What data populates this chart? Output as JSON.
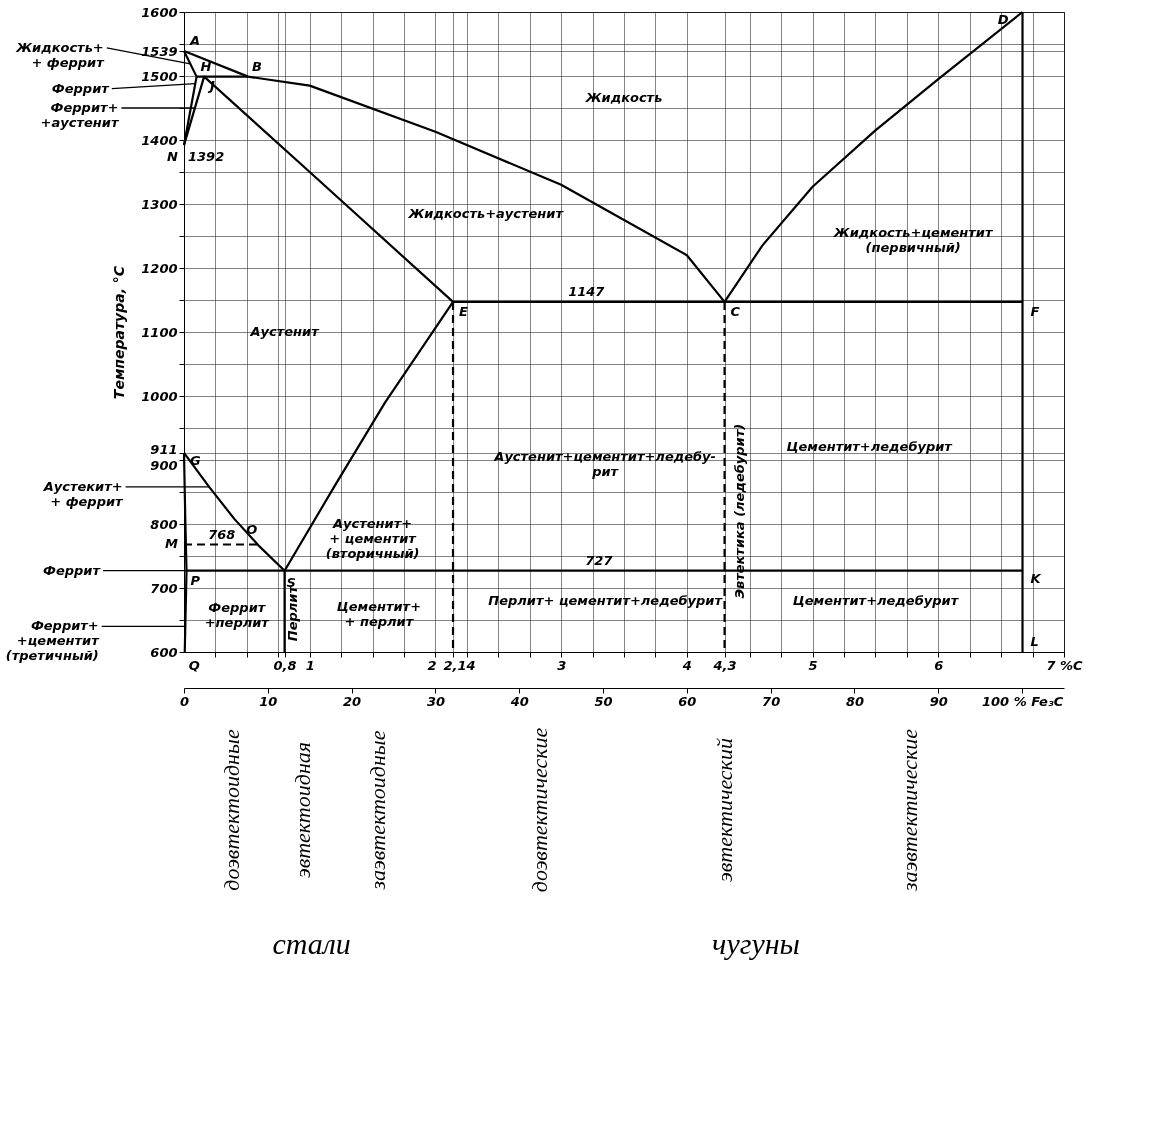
{
  "chart_data": {
    "type": "line",
    "ylabel": "Температура, °C",
    "xlim": [
      0,
      7
    ],
    "xticks": [
      {
        "value": 0.25,
        "label": null
      },
      {
        "value": 0.5,
        "label": null
      },
      {
        "value": 0.75,
        "label": null
      },
      {
        "value": 0.8,
        "label": "0,8"
      },
      1,
      {
        "value": 1.25,
        "label": null
      },
      {
        "value": 1.5,
        "label": null
      },
      {
        "value": 1.75,
        "label": null
      },
      2,
      {
        "value": 2.14,
        "label": "2,14"
      },
      {
        "value": 2.25,
        "label": null
      },
      {
        "value": 2.5,
        "label": null
      },
      {
        "value": 2.75,
        "label": null
      },
      3,
      {
        "value": 3.25,
        "label": null
      },
      {
        "value": 3.5,
        "label": null
      },
      {
        "value": 3.75,
        "label": null
      },
      4,
      {
        "value": 4.3,
        "label": "4,3"
      },
      {
        "value": 4.5,
        "label": null
      },
      {
        "value": 4.75,
        "label": null
      },
      5,
      {
        "value": 5.25,
        "label": null
      },
      {
        "value": 5.5,
        "label": null
      },
      {
        "value": 5.75,
        "label": null
      },
      6,
      {
        "value": 6.25,
        "label": null
      },
      {
        "value": 6.5,
        "label": null
      },
      {
        "value": 6.75,
        "label": null
      },
      {
        "value": 7,
        "label": "7 %C"
      }
    ],
    "x2lim": [
      0,
      105
    ],
    "x2ticks": [
      0,
      10,
      20,
      30,
      40,
      50,
      60,
      70,
      80,
      90,
      {
        "value": 100,
        "label": "100 % Fe₃C"
      }
    ],
    "ylim": [
      600,
      1600
    ],
    "yticks": [
      600,
      {
        "value": 650,
        "label": null
      },
      700,
      {
        "value": 750,
        "label": null
      },
      800,
      {
        "value": 850,
        "label": null
      },
      900,
      911,
      {
        "value": 950,
        "label": null
      },
      1000,
      {
        "value": 1050,
        "label": null
      },
      1100,
      {
        "value": 1150,
        "label": null
      },
      1200,
      {
        "value": 1250,
        "label": null
      },
      1300,
      {
        "value": 1350,
        "label": null
      },
      1400,
      {
        "value": 1450,
        "label": null
      },
      1500,
      1539,
      {
        "value": 1550,
        "label": null
      },
      1600
    ],
    "grid": true,
    "series": [
      {
        "color": "#000000",
        "x": [
          0,
          0.51,
          1,
          2,
          3,
          4,
          4.3,
          4.6,
          5,
          5.5,
          6,
          6.67
        ],
        "values": [
          1539,
          1499,
          1485,
          1413,
          1330,
          1220,
          1147,
          1235,
          1327,
          1415,
          1495,
          1600
        ]
      },
      {
        "color": "#000000",
        "x": [
          0,
          0.1,
          0
        ],
        "values": [
          1392,
          1499,
          1539
        ]
      },
      {
        "color": "#000000",
        "x": [
          0.1,
          0.51
        ],
        "values": [
          1499,
          1499
        ]
      },
      {
        "color": "#000000",
        "x": [
          0,
          0.16,
          1,
          2.14,
          6.67
        ],
        "values": [
          1392,
          1499,
          1350,
          1147,
          1147
        ]
      },
      {
        "color": "#000000",
        "x": [
          0,
          0.2,
          0.4,
          0.6,
          0.8,
          1.2,
          1.6,
          2.14
        ],
        "values": [
          911,
          858,
          808,
          765,
          727,
          860,
          990,
          1147
        ]
      },
      {
        "color": "#000000",
        "x": [
          0.006,
          0.02,
          0.01,
          0
        ],
        "values": [
          600,
          727,
          810,
          911
        ]
      },
      {
        "color": "#000000",
        "x": [
          0.02,
          6.67
        ],
        "values": [
          727,
          727
        ]
      },
      {
        "color": "#000000",
        "x": [
          0,
          0.6
        ],
        "values": [
          768,
          768
        ],
        "line_style": "dashed"
      },
      {
        "color": "#000000",
        "x": [
          2.14,
          2.14
        ],
        "values": [
          1147,
          600
        ],
        "line_style": "dashed"
      },
      {
        "color": "#000000",
        "x": [
          4.3,
          4.3
        ],
        "values": [
          1147,
          600
        ],
        "line_style": "dashed"
      },
      {
        "color": "#000000",
        "x": [
          6.67,
          6.67
        ],
        "values": [
          1600,
          600
        ]
      },
      {
        "color": "#000000",
        "x": [
          0.8,
          0.8
        ],
        "values": [
          727,
          600
        ]
      }
    ],
    "annotations": [
      {
        "text": "Жидкость+\n+ феррит",
        "x": 0.05,
        "y": 1519
      },
      {
        "text": "Феррит",
        "x": 0.09,
        "y": 1488
      },
      {
        "text": "Феррит+\n+аустенит",
        "x": 0.087,
        "y": 1450
      },
      {
        "text": "Аустекит+\n+ феррит",
        "x": 0.2,
        "y": 858
      },
      {
        "text": "Феррит",
        "x": 0.02,
        "y": 727
      },
      {
        "text": "Феррит+\n+цементит\n(третичный)",
        "x": 0.01,
        "y": 640
      },
      {
        "text": "1392",
        "x": 0,
        "y": 1392
      },
      {
        "text": "768",
        "x": 0.3,
        "y": 768
      },
      {
        "text": "A",
        "x": 0,
        "y": 1539
      },
      {
        "text": "B",
        "x": 0.51,
        "y": 1499
      },
      {
        "text": "H",
        "x": 0.1,
        "y": 1499
      },
      {
        "text": "J",
        "x": 0.16,
        "y": 1499
      },
      {
        "text": "N",
        "x": 0,
        "y": 1392
      },
      {
        "text": "G",
        "x": 0,
        "y": 911
      },
      {
        "text": "M",
        "x": 0,
        "y": 768
      },
      {
        "text": "O",
        "x": 0.6,
        "y": 768
      },
      {
        "text": "P",
        "x": 0.02,
        "y": 727
      },
      {
        "text": "S",
        "x": 0.8,
        "y": 727
      },
      {
        "text": "Q",
        "x": 0.006,
        "y": 600
      },
      {
        "text": "E",
        "x": 2.14,
        "y": 1147
      },
      {
        "text": "C",
        "x": 4.3,
        "y": 1147
      },
      {
        "text": "D",
        "x": 6.67,
        "y": 1600
      },
      {
        "text": "F",
        "x": 6.67,
        "y": 1147
      },
      {
        "text": "K",
        "x": 6.67,
        "y": 727
      },
      {
        "text": "L",
        "x": 6.67,
        "y": 600
      },
      {
        "text": "1147",
        "x": 3.2,
        "y": 1147
      },
      {
        "text": "727",
        "x": 3.3,
        "y": 727
      },
      "Жидкость",
      "Жидкость+аустенит",
      "Жидкость+цементит\n(первичный)",
      "Аустенит",
      "Аустенит+цементит+ледебу-\nрит",
      "Эвтектика (ледебурит)",
      "Цементит+ледебурит",
      "Аустенит+\n+ цементит\n(вторичный)",
      "Феррит\n+перлит",
      "Перлит",
      "Цементит+\n+ перлит",
      "Перлит+ цементит+ледебурит",
      "Цементит+ледебурит",
      "доэвтектоидные",
      "эвтектоидная",
      "заэвтектоидные",
      "доэвтектические",
      "эвтектический",
      "заэвтектические",
      "стали",
      "чугуны"
    ]
  }
}
